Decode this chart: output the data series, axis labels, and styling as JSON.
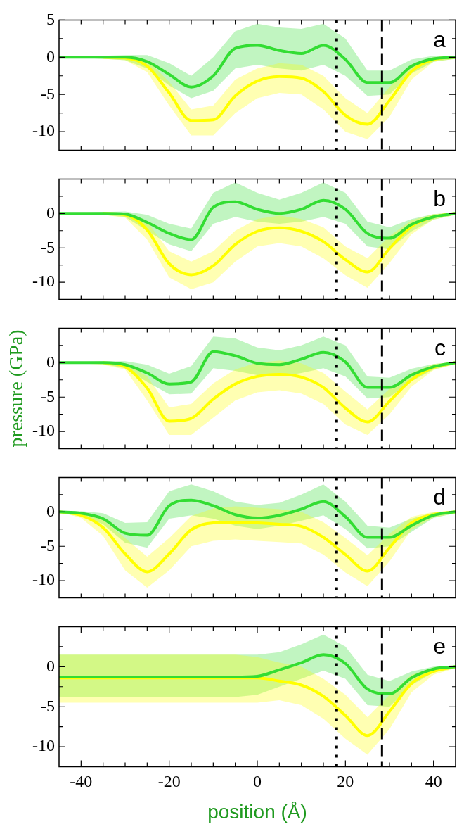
{
  "chart_data": [
    {
      "type": "line",
      "annotations": [
        "a"
      ],
      "x": [
        -45,
        -40,
        -35,
        -30,
        -25,
        -20,
        -15,
        -10,
        -5,
        0,
        5,
        10,
        15,
        20,
        25,
        30,
        35,
        40,
        45
      ],
      "xlim": [
        -45,
        45
      ],
      "ylim": [
        -12.5,
        5
      ],
      "tick_labels": "y",
      "xticks": [
        {
          "value": -40,
          "label": null
        },
        {
          "value": -35,
          "label": null
        },
        {
          "value": -30,
          "label": null
        },
        {
          "value": -25,
          "label": null
        },
        {
          "value": -20,
          "label": null
        },
        {
          "value": -15,
          "label": null
        },
        {
          "value": -10,
          "label": null
        },
        {
          "value": -5,
          "label": null
        },
        {
          "value": 0,
          "label": null
        },
        {
          "value": 5,
          "label": null
        },
        {
          "value": 10,
          "label": null
        },
        {
          "value": 15,
          "label": null
        },
        {
          "value": 20,
          "label": null
        },
        {
          "value": 25,
          "label": null
        },
        {
          "value": 30,
          "label": null
        },
        {
          "value": 35,
          "label": null
        },
        {
          "value": 40,
          "label": null
        }
      ],
      "yticks": [
        -10,
        {
          "value": -7.5,
          "label": null
        },
        -5,
        {
          "value": -2.5,
          "label": null
        },
        0,
        {
          "value": 2.5,
          "label": null
        },
        5
      ],
      "ref_lines": [
        {
          "axis": "x",
          "value": 18,
          "line_style": "dotted",
          "color": "#000000"
        },
        {
          "axis": "x",
          "value": 28.3,
          "line_style": "dashed",
          "color": "#000000"
        }
      ],
      "series": [
        {
          "color": "#33dd33",
          "values": [
            0,
            0,
            0,
            0,
            -0.6,
            -2.3,
            -4.0,
            -2.5,
            1.2,
            1.6,
            0.9,
            0.5,
            1.6,
            -0.3,
            -3.4,
            -3.4,
            -1.2,
            -0.2,
            0
          ],
          "lower": [
            0,
            -0.1,
            -0.2,
            -0.4,
            -1.5,
            -3.8,
            -5.5,
            -4.5,
            -1.5,
            -1,
            -1.5,
            -1.8,
            -1,
            -2.5,
            -5.2,
            -5,
            -2.2,
            -0.6,
            -0.2
          ],
          "upper": [
            0,
            0.1,
            0.2,
            0.3,
            0.3,
            -0.8,
            -2.5,
            0,
            3.5,
            4.5,
            4,
            3.8,
            4.5,
            2.5,
            -1.8,
            -1.8,
            -0.3,
            0.2,
            0.1
          ]
        },
        {
          "color": "#ffff00",
          "values": [
            null,
            null,
            0,
            -0.1,
            -1.2,
            -4.8,
            -8.5,
            -8.4,
            -5.2,
            -3.2,
            -2.6,
            -2.8,
            -4.6,
            -7.8,
            -9.0,
            -5.8,
            -1.9,
            -0.3,
            0
          ],
          "lower": [
            0,
            -0.1,
            -0.2,
            -0.4,
            -2,
            -6.5,
            -10.5,
            -10.5,
            -7.5,
            -5.5,
            -4.8,
            -5,
            -7,
            -10,
            -11,
            -8,
            -3,
            -0.6,
            -0.2
          ],
          "upper": [
            0,
            0.1,
            0.1,
            0.1,
            -0.4,
            -3.3,
            -7,
            -6.5,
            -3,
            -1.5,
            -0.8,
            -1,
            -2.5,
            -5.5,
            -7.5,
            -4,
            -1,
            0,
            0.1
          ]
        }
      ]
    },
    {
      "type": "line",
      "annotations": [
        "b"
      ],
      "x": [
        -45,
        -40,
        -35,
        -30,
        -25,
        -20,
        -15,
        -10,
        -5,
        0,
        5,
        10,
        15,
        20,
        25,
        30,
        35,
        40,
        45
      ],
      "xlim": [
        -45,
        45
      ],
      "ylim": [
        -12.5,
        5
      ],
      "tick_labels": "y",
      "xticks": [
        {
          "value": -40,
          "label": null
        },
        {
          "value": -35,
          "label": null
        },
        {
          "value": -30,
          "label": null
        },
        {
          "value": -25,
          "label": null
        },
        {
          "value": -20,
          "label": null
        },
        {
          "value": -15,
          "label": null
        },
        {
          "value": -10,
          "label": null
        },
        {
          "value": -5,
          "label": null
        },
        {
          "value": 0,
          "label": null
        },
        {
          "value": 5,
          "label": null
        },
        {
          "value": 10,
          "label": null
        },
        {
          "value": 15,
          "label": null
        },
        {
          "value": 20,
          "label": null
        },
        {
          "value": 25,
          "label": null
        },
        {
          "value": 30,
          "label": null
        },
        {
          "value": 35,
          "label": null
        },
        {
          "value": 40,
          "label": null
        }
      ],
      "yticks": [
        -10,
        {
          "value": -7.5,
          "label": null
        },
        -5,
        {
          "value": -2.5,
          "label": null
        },
        0,
        {
          "value": 2.5,
          "label": null
        }
      ],
      "ref_lines": [
        {
          "axis": "x",
          "value": 18,
          "line_style": "dotted",
          "color": "#000000"
        },
        {
          "axis": "x",
          "value": 28.3,
          "line_style": "dashed",
          "color": "#000000"
        }
      ],
      "series": [
        {
          "color": "#33dd33",
          "values": [
            0,
            0,
            0,
            -0.1,
            -1.3,
            -2.9,
            -3.8,
            0.9,
            1.7,
            0.6,
            0,
            0.6,
            1.9,
            0.6,
            -2.9,
            -3.6,
            -1.6,
            -0.5,
            0
          ],
          "lower": [
            0,
            -0.1,
            -0.2,
            -0.5,
            -2.5,
            -4.5,
            -5.5,
            -1.5,
            -0.5,
            -1.2,
            -1.5,
            -1.2,
            -0.5,
            -1.5,
            -4.8,
            -5.2,
            -2.6,
            -0.9,
            -0.2
          ],
          "upper": [
            0,
            0.1,
            0.2,
            0.3,
            -0.2,
            -1.5,
            -2.2,
            3,
            4.5,
            3,
            2,
            3,
            4.5,
            3,
            -1.2,
            -2,
            -0.8,
            -0.1,
            0.1
          ]
        },
        {
          "color": "#ffff00",
          "values": [
            null,
            null,
            0,
            -0.2,
            -2.4,
            -7.3,
            -8.9,
            -7.6,
            -4.5,
            -2.6,
            -2.1,
            -2.6,
            -4.1,
            -6.7,
            -8.5,
            -5.1,
            -1.9,
            -0.5,
            0
          ],
          "lower": [
            0,
            -0.1,
            -0.2,
            -0.6,
            -3.8,
            -9.3,
            -11,
            -10,
            -7,
            -4.8,
            -4.3,
            -4.8,
            -6.5,
            -9,
            -10.8,
            -7.2,
            -3,
            -0.9,
            -0.2
          ],
          "upper": [
            0,
            0.1,
            0.1,
            0.1,
            -1.2,
            -5.5,
            -7,
            -5.5,
            -2.5,
            -0.8,
            -0.3,
            -0.8,
            -2,
            -4.8,
            -6.5,
            -3.3,
            -1,
            -0.1,
            0.1
          ]
        }
      ]
    },
    {
      "type": "line",
      "annotations": [
        "c"
      ],
      "ylabel": "pressure (GPa)",
      "x": [
        -45,
        -40,
        -35,
        -30,
        -25,
        -20,
        -15,
        -10,
        -5,
        0,
        5,
        10,
        15,
        20,
        25,
        30,
        35,
        40,
        45
      ],
      "xlim": [
        -45,
        45
      ],
      "ylim": [
        -12.5,
        5
      ],
      "tick_labels": "y",
      "xticks": [
        {
          "value": -40,
          "label": null
        },
        {
          "value": -35,
          "label": null
        },
        {
          "value": -30,
          "label": null
        },
        {
          "value": -25,
          "label": null
        },
        {
          "value": -20,
          "label": null
        },
        {
          "value": -15,
          "label": null
        },
        {
          "value": -10,
          "label": null
        },
        {
          "value": -5,
          "label": null
        },
        {
          "value": 0,
          "label": null
        },
        {
          "value": 5,
          "label": null
        },
        {
          "value": 10,
          "label": null
        },
        {
          "value": 15,
          "label": null
        },
        {
          "value": 20,
          "label": null
        },
        {
          "value": 25,
          "label": null
        },
        {
          "value": 30,
          "label": null
        },
        {
          "value": 35,
          "label": null
        },
        {
          "value": 40,
          "label": null
        }
      ],
      "yticks": [
        -10,
        {
          "value": -7.5,
          "label": null
        },
        -5,
        {
          "value": -2.5,
          "label": null
        },
        0,
        {
          "value": 2.5,
          "label": null
        }
      ],
      "ref_lines": [
        {
          "axis": "x",
          "value": 18,
          "line_style": "dotted",
          "color": "#000000"
        },
        {
          "axis": "x",
          "value": 28.3,
          "line_style": "dashed",
          "color": "#000000"
        }
      ],
      "series": [
        {
          "color": "#33dd33",
          "values": [
            0,
            0,
            0,
            -0.3,
            -1.5,
            -3.1,
            -2.8,
            1.6,
            1.0,
            -0.1,
            -0.3,
            0.5,
            1.5,
            0.1,
            -3.6,
            -3.6,
            -1.8,
            -0.6,
            0
          ],
          "lower": [
            0,
            -0.1,
            -0.2,
            -0.8,
            -2.8,
            -4.6,
            -4.5,
            -0.8,
            -1.2,
            -1.8,
            -2,
            -1.5,
            -0.8,
            -2,
            -5.2,
            -5,
            -2.7,
            -1,
            -0.2
          ],
          "upper": [
            0,
            0.1,
            0.2,
            0.2,
            -0.3,
            -1.6,
            -0.5,
            3.8,
            3.5,
            2.2,
            1.8,
            2.5,
            3.8,
            2.5,
            -2,
            -2.2,
            -0.9,
            -0.2,
            0.1
          ]
        },
        {
          "color": "#ffff00",
          "values": [
            null,
            null,
            0,
            -0.6,
            -3.7,
            -8.5,
            -8.1,
            -5.3,
            -3.1,
            -2.0,
            -1.7,
            -2.1,
            -3.6,
            -6.6,
            -8.6,
            -5.6,
            -2.5,
            -0.7,
            0
          ],
          "lower": [
            0,
            -0.1,
            -0.3,
            -1,
            -5.5,
            -10.5,
            -10.5,
            -8,
            -5.5,
            -4.3,
            -4,
            -4.5,
            -6,
            -9,
            -10.5,
            -7.5,
            -3.5,
            -1.1,
            -0.2
          ],
          "upper": [
            0,
            0.1,
            0.1,
            -0.1,
            -2,
            -6.5,
            -6,
            -3,
            -1,
            0,
            0.3,
            -0.1,
            -1.5,
            -4.2,
            -6.8,
            -3.8,
            -1.5,
            -0.2,
            0.1
          ]
        }
      ]
    },
    {
      "type": "line",
      "annotations": [
        "d"
      ],
      "x": [
        -45,
        -40,
        -35,
        -30,
        -25,
        -20,
        -15,
        -10,
        -5,
        0,
        5,
        10,
        15,
        20,
        25,
        30,
        35,
        40,
        45
      ],
      "xlim": [
        -45,
        45
      ],
      "ylim": [
        -12.5,
        5
      ],
      "tick_labels": "y",
      "xticks": [
        {
          "value": -40,
          "label": null
        },
        {
          "value": -35,
          "label": null
        },
        {
          "value": -30,
          "label": null
        },
        {
          "value": -25,
          "label": null
        },
        {
          "value": -20,
          "label": null
        },
        {
          "value": -15,
          "label": null
        },
        {
          "value": -10,
          "label": null
        },
        {
          "value": -5,
          "label": null
        },
        {
          "value": 0,
          "label": null
        },
        {
          "value": 5,
          "label": null
        },
        {
          "value": 10,
          "label": null
        },
        {
          "value": 15,
          "label": null
        },
        {
          "value": 20,
          "label": null
        },
        {
          "value": 25,
          "label": null
        },
        {
          "value": 30,
          "label": null
        },
        {
          "value": 35,
          "label": null
        },
        {
          "value": 40,
          "label": null
        }
      ],
      "yticks": [
        -10,
        {
          "value": -7.5,
          "label": null
        },
        -5,
        {
          "value": -2.5,
          "label": null
        },
        0,
        {
          "value": 2.5,
          "label": null
        }
      ],
      "ref_lines": [
        {
          "axis": "x",
          "value": 18,
          "line_style": "dotted",
          "color": "#000000"
        },
        {
          "axis": "x",
          "value": 28.3,
          "line_style": "dashed",
          "color": "#000000"
        }
      ],
      "series": [
        {
          "color": "#33dd33",
          "values": [
            0,
            -0.2,
            -1.0,
            -3.1,
            -3.4,
            0.9,
            1.7,
            0.9,
            -0.4,
            -0.9,
            -0.5,
            0.4,
            1.5,
            -0.7,
            -3.7,
            -3.7,
            -2.0,
            -0.5,
            0
          ],
          "lower": [
            0,
            -0.5,
            -1.8,
            -4.5,
            -5.2,
            -1,
            -0.5,
            -1,
            -2,
            -2.5,
            -2,
            -1.3,
            -0.5,
            -2.5,
            -5.3,
            -5,
            -2.9,
            -0.9,
            -0.2
          ],
          "upper": [
            0,
            0.1,
            -0.2,
            -1.6,
            -1.5,
            3,
            4,
            3,
            1.5,
            1,
            1.3,
            2.5,
            4,
            1.5,
            -2,
            -2.3,
            -1,
            -0.1,
            0.1
          ]
        },
        {
          "color": "#ffff00",
          "values": [
            0,
            -0.5,
            -2.3,
            -6.1,
            -8.7,
            -6.1,
            -2.6,
            -1.6,
            -1.5,
            -1.6,
            -1.8,
            -2.1,
            -3.7,
            -6.2,
            -8.6,
            -5.2,
            -1.6,
            -0.4,
            0
          ],
          "lower": [
            0,
            -0.9,
            -3.5,
            -8.5,
            -11,
            -8.5,
            -5,
            -4.2,
            -4,
            -4.2,
            -4.4,
            -4.6,
            -6.2,
            -8.8,
            -10.8,
            -7.2,
            -2.6,
            -0.8,
            -0.2
          ],
          "upper": [
            0,
            -0.1,
            -1.2,
            -3.8,
            -6.5,
            -3.8,
            -0.6,
            0.5,
            0.8,
            0.6,
            0.4,
            0,
            -1.5,
            -3.8,
            -6.3,
            -3.2,
            -0.7,
            0,
            0.1
          ]
        }
      ]
    },
    {
      "type": "line",
      "annotations": [
        "e"
      ],
      "xlabel": "position (Å)",
      "x": [
        -45,
        -40,
        -35,
        -30,
        -25,
        -20,
        -15,
        -10,
        -5,
        0,
        5,
        10,
        15,
        20,
        25,
        30,
        35,
        40,
        45
      ],
      "xlim": [
        -45,
        45
      ],
      "ylim": [
        -12.5,
        5
      ],
      "xticks": [
        -40,
        {
          "value": -35,
          "label": null
        },
        {
          "value": -30,
          "label": null
        },
        {
          "value": -25,
          "label": null
        },
        -20,
        {
          "value": -15,
          "label": null
        },
        {
          "value": -10,
          "label": null
        },
        {
          "value": -5,
          "label": null
        },
        0,
        {
          "value": 5,
          "label": null
        },
        {
          "value": 10,
          "label": null
        },
        {
          "value": 15,
          "label": null
        },
        20,
        {
          "value": 25,
          "label": null
        },
        {
          "value": 30,
          "label": null
        },
        {
          "value": 35,
          "label": null
        },
        40
      ],
      "yticks": [
        -10,
        {
          "value": -7.5,
          "label": null
        },
        -5,
        {
          "value": -2.5,
          "label": null
        },
        0,
        {
          "value": 2.5,
          "label": null
        }
      ],
      "ref_lines": [
        {
          "axis": "x",
          "value": 18,
          "line_style": "dotted",
          "color": "#000000"
        },
        {
          "axis": "x",
          "value": 28.3,
          "line_style": "dashed",
          "color": "#000000"
        }
      ],
      "series": [
        {
          "color": "#33dd33",
          "values": [
            -1.3,
            -1.3,
            -1.3,
            -1.3,
            -1.3,
            -1.3,
            -1.3,
            -1.3,
            -1.3,
            -1.2,
            -0.4,
            0.5,
            1.5,
            0.4,
            -2.8,
            -3.4,
            -1.4,
            -0.3,
            0
          ],
          "lower": [
            -3.8,
            -3.8,
            -3.8,
            -3.8,
            -3.8,
            -3.8,
            -3.8,
            -3.8,
            -3.8,
            -3.5,
            -2.5,
            -1.5,
            -0.5,
            -1.5,
            -4.8,
            -5,
            -2.3,
            -0.7,
            -0.2
          ],
          "upper": [
            1.5,
            1.5,
            1.5,
            1.5,
            1.5,
            1.5,
            1.5,
            1.5,
            1.5,
            1.5,
            1.8,
            2.8,
            4,
            2.5,
            -1,
            -1.8,
            -0.6,
            0,
            0.1
          ]
        },
        {
          "color": "#ffff00",
          "values": [
            -1.4,
            -1.4,
            -1.4,
            -1.4,
            -1.4,
            -1.4,
            -1.4,
            -1.4,
            -1.4,
            -1.4,
            -1.8,
            -2.3,
            -3.7,
            -6.1,
            -8.6,
            -5.6,
            -2.1,
            -0.6,
            0
          ],
          "lower": [
            -4.5,
            -4.5,
            -4.5,
            -4.5,
            -4.5,
            -4.5,
            -4.5,
            -4.5,
            -4.5,
            -4.5,
            -4.2,
            -4.8,
            -6.5,
            -9,
            -11,
            -7.8,
            -3.2,
            -1,
            -0.2
          ],
          "upper": [
            1.5,
            1.5,
            1.5,
            1.5,
            1.5,
            1.5,
            1.5,
            1.5,
            1.5,
            1.2,
            0.5,
            0,
            -1.5,
            -3.5,
            -6.3,
            -3.5,
            -1,
            -0.1,
            0.1
          ]
        }
      ]
    }
  ]
}
